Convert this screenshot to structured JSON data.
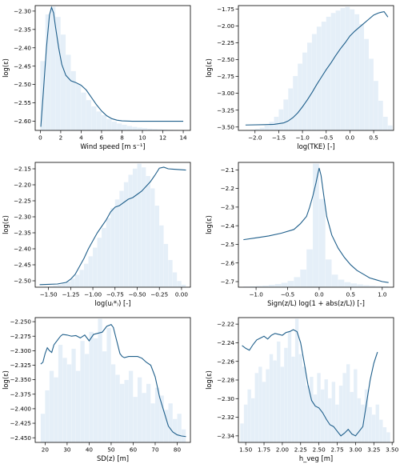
{
  "chart_data": [
    {
      "type": "line",
      "xlabel": "Wind speed [m s⁻¹]",
      "ylabel": "log(ε)",
      "xlim": [
        -0.5,
        14.7
      ],
      "ylim": [
        -2.625,
        -2.285
      ],
      "xticks": [
        0,
        2,
        4,
        6,
        8,
        10,
        12,
        14
      ],
      "yticks": [
        -2.6,
        -2.55,
        -2.5,
        -2.45,
        -2.4,
        -2.35,
        -2.3
      ],
      "xtick_labels": [
        "0",
        "2",
        "4",
        "6",
        "8",
        "10",
        "12",
        "14"
      ],
      "ytick_labels": [
        "−2.60",
        "−2.55",
        "−2.50",
        "−2.45",
        "−2.40",
        "−2.35",
        "−2.30"
      ],
      "hist_x": [
        0.25,
        0.75,
        1.25,
        1.75,
        2.25,
        2.75,
        3.25,
        3.75,
        4.25,
        4.75,
        5.25,
        5.75,
        6.25,
        6.75,
        7.25,
        7.75,
        8.25,
        8.75,
        9.25,
        9.75,
        10.25,
        10.75,
        11.25,
        11.75,
        12.25,
        12.75,
        13.25,
        13.75
      ],
      "hist_bin_width": 0.5,
      "hist_values": [
        0.55,
        0.92,
        0.98,
        0.9,
        0.76,
        0.6,
        0.47,
        0.37,
        0.3,
        0.24,
        0.19,
        0.15,
        0.12,
        0.09,
        0.07,
        0.055,
        0.045,
        0.035,
        0.028,
        0.022,
        0.018,
        0.014,
        0.011,
        0.009,
        0.007,
        0.005,
        0.004,
        0.003
      ],
      "line_x": [
        0.05,
        0.3,
        0.6,
        0.9,
        1.1,
        1.3,
        1.5,
        1.8,
        2.1,
        2.5,
        3.0,
        3.5,
        4.0,
        4.5,
        5.0,
        5.5,
        6.0,
        6.5,
        7.0,
        7.5,
        8.0,
        9.0,
        10.0,
        11.0,
        12.0,
        13.0,
        14.0
      ],
      "line_y": [
        -2.615,
        -2.52,
        -2.4,
        -2.31,
        -2.29,
        -2.305,
        -2.345,
        -2.4,
        -2.445,
        -2.475,
        -2.49,
        -2.495,
        -2.502,
        -2.515,
        -2.535,
        -2.555,
        -2.572,
        -2.585,
        -2.593,
        -2.597,
        -2.599,
        -2.6,
        -2.6,
        -2.6,
        -2.6,
        -2.6,
        -2.6
      ]
    },
    {
      "type": "line",
      "xlabel": "log(TKE) [-]",
      "ylabel": "log(ε)",
      "xlim": [
        -2.35,
        0.92
      ],
      "ylim": [
        -3.55,
        -1.7
      ],
      "xticks": [
        -2.0,
        -1.5,
        -1.0,
        -0.5,
        0.0,
        0.5
      ],
      "yticks": [
        -3.5,
        -3.25,
        -3.0,
        -2.75,
        -2.5,
        -2.25,
        -2.0,
        -1.75
      ],
      "xtick_labels": [
        "−2.0",
        "−1.5",
        "−1.0",
        "−0.5",
        "0.0",
        "0.5"
      ],
      "ytick_labels": [
        "−3.50",
        "−3.25",
        "−3.00",
        "−2.75",
        "−2.50",
        "−2.25",
        "−2.00",
        "−1.75"
      ],
      "hist_x": [
        -2.15,
        -2.05,
        -1.95,
        -1.85,
        -1.75,
        -1.65,
        -1.55,
        -1.45,
        -1.35,
        -1.25,
        -1.15,
        -1.05,
        -0.95,
        -0.85,
        -0.75,
        -0.65,
        -0.55,
        -0.45,
        -0.35,
        -0.25,
        -0.15,
        -0.05,
        0.05,
        0.15,
        0.25,
        0.35,
        0.45,
        0.55,
        0.65,
        0.75,
        0.85
      ],
      "hist_bin_width": 0.1,
      "hist_values": [
        0.003,
        0.006,
        0.012,
        0.022,
        0.04,
        0.07,
        0.11,
        0.17,
        0.25,
        0.34,
        0.44,
        0.54,
        0.63,
        0.71,
        0.78,
        0.84,
        0.88,
        0.92,
        0.95,
        0.97,
        0.99,
        1.0,
        0.98,
        0.94,
        0.86,
        0.74,
        0.58,
        0.4,
        0.24,
        0.11,
        0.04
      ],
      "line_x": [
        -2.2,
        -1.8,
        -1.6,
        -1.4,
        -1.3,
        -1.2,
        -1.1,
        -1.0,
        -0.9,
        -0.8,
        -0.7,
        -0.6,
        -0.5,
        -0.4,
        -0.3,
        -0.2,
        -0.1,
        0.0,
        0.1,
        0.2,
        0.3,
        0.4,
        0.5,
        0.6,
        0.65,
        0.72,
        0.8
      ],
      "line_y": [
        -3.47,
        -3.465,
        -3.46,
        -3.44,
        -3.41,
        -3.36,
        -3.29,
        -3.2,
        -3.1,
        -2.99,
        -2.87,
        -2.76,
        -2.65,
        -2.55,
        -2.44,
        -2.34,
        -2.25,
        -2.15,
        -2.08,
        -2.02,
        -1.96,
        -1.9,
        -1.84,
        -1.81,
        -1.8,
        -1.79,
        -1.87
      ]
    },
    {
      "type": "line",
      "xlabel": "log(u₍*₎) [-]",
      "ylabel": "log(ε)",
      "xlim": [
        -1.65,
        0.1
      ],
      "ylim": [
        -2.52,
        -2.13
      ],
      "xticks": [
        -1.5,
        -1.25,
        -1.0,
        -0.75,
        -0.5,
        -0.25,
        0.0
      ],
      "yticks": [
        -2.5,
        -2.45,
        -2.4,
        -2.35,
        -2.3,
        -2.25,
        -2.2,
        -2.15
      ],
      "xtick_labels": [
        "−1.50",
        "−1.25",
        "−1.00",
        "−0.75",
        "−0.50",
        "−0.25",
        "0.00"
      ],
      "ytick_labels": [
        "−2.50",
        "−2.45",
        "−2.40",
        "−2.35",
        "−2.30",
        "−2.25",
        "−2.20",
        "−2.15"
      ],
      "hist_x": [
        -1.575,
        -1.525,
        -1.475,
        -1.425,
        -1.375,
        -1.325,
        -1.275,
        -1.225,
        -1.175,
        -1.125,
        -1.075,
        -1.025,
        -0.975,
        -0.925,
        -0.875,
        -0.825,
        -0.775,
        -0.725,
        -0.675,
        -0.625,
        -0.575,
        -0.525,
        -0.475,
        -0.425,
        -0.375,
        -0.325,
        -0.275,
        -0.225,
        -0.175,
        -0.125,
        -0.075,
        -0.025,
        0.025
      ],
      "hist_bin_width": 0.05,
      "hist_values": [
        0.002,
        0.004,
        0.008,
        0.013,
        0.02,
        0.03,
        0.045,
        0.07,
        0.1,
        0.14,
        0.19,
        0.25,
        0.32,
        0.4,
        0.48,
        0.56,
        0.64,
        0.71,
        0.78,
        0.85,
        0.91,
        0.96,
        1.0,
        0.97,
        0.9,
        0.8,
        0.66,
        0.5,
        0.35,
        0.22,
        0.12,
        0.05,
        0.02
      ],
      "line_x": [
        -1.6,
        -1.5,
        -1.4,
        -1.3,
        -1.25,
        -1.2,
        -1.15,
        -1.1,
        -1.05,
        -1.0,
        -0.95,
        -0.9,
        -0.85,
        -0.8,
        -0.75,
        -0.7,
        -0.65,
        -0.6,
        -0.55,
        -0.5,
        -0.45,
        -0.4,
        -0.35,
        -0.3,
        -0.25,
        -0.2,
        -0.15,
        -0.1,
        -0.05,
        0.0,
        0.05
      ],
      "line_y": [
        -2.512,
        -2.511,
        -2.51,
        -2.505,
        -2.495,
        -2.48,
        -2.455,
        -2.43,
        -2.4,
        -2.375,
        -2.35,
        -2.33,
        -2.31,
        -2.285,
        -2.27,
        -2.265,
        -2.255,
        -2.245,
        -2.24,
        -2.23,
        -2.22,
        -2.205,
        -2.19,
        -2.17,
        -2.148,
        -2.145,
        -2.15,
        -2.151,
        -2.152,
        -2.153,
        -2.154
      ]
    },
    {
      "type": "line",
      "xlabel": "Sign(z/L) log(1 + abs(z/L)) [-]",
      "ylabel": "log(ε)",
      "xlim": [
        -1.28,
        1.18
      ],
      "ylim": [
        -2.73,
        -2.06
      ],
      "xticks": [
        -1.0,
        -0.5,
        0.0,
        0.5,
        1.0
      ],
      "yticks": [
        -2.7,
        -2.6,
        -2.5,
        -2.4,
        -2.3,
        -2.2,
        -2.1
      ],
      "xtick_labels": [
        "−1.0",
        "−0.5",
        "0.0",
        "0.5",
        "1.0"
      ],
      "ytick_labels": [
        "−2.7",
        "−2.6",
        "−2.5",
        "−2.4",
        "−2.3",
        "−2.2",
        "−2.1"
      ],
      "hist_x": [
        -1.15,
        -1.05,
        -0.95,
        -0.85,
        -0.75,
        -0.65,
        -0.55,
        -0.45,
        -0.35,
        -0.25,
        -0.15,
        -0.05,
        0.05,
        0.15,
        0.25,
        0.35,
        0.45,
        0.55,
        0.65,
        0.75,
        0.85,
        0.95,
        1.05
      ],
      "hist_bin_width": 0.1,
      "hist_values": [
        0.005,
        0.007,
        0.01,
        0.013,
        0.018,
        0.025,
        0.035,
        0.05,
        0.08,
        0.14,
        0.3,
        0.98,
        0.7,
        0.22,
        0.1,
        0.06,
        0.04,
        0.03,
        0.022,
        0.016,
        0.012,
        0.009,
        0.007
      ],
      "line_x": [
        -1.2,
        -1.0,
        -0.8,
        -0.6,
        -0.4,
        -0.3,
        -0.2,
        -0.15,
        -0.1,
        -0.05,
        -0.02,
        0.0,
        0.03,
        0.07,
        0.12,
        0.2,
        0.3,
        0.4,
        0.5,
        0.6,
        0.7,
        0.8,
        0.9,
        1.0,
        1.1
      ],
      "line_y": [
        -2.475,
        -2.465,
        -2.455,
        -2.44,
        -2.42,
        -2.39,
        -2.35,
        -2.3,
        -2.24,
        -2.17,
        -2.12,
        -2.09,
        -2.13,
        -2.23,
        -2.35,
        -2.45,
        -2.52,
        -2.57,
        -2.61,
        -2.64,
        -2.66,
        -2.68,
        -2.69,
        -2.7,
        -2.705
      ]
    },
    {
      "type": "line",
      "xlabel": "SD(z) [m]",
      "ylabel": "log(ε)",
      "xlim": [
        15.5,
        86
      ],
      "ylim": [
        -2.458,
        -2.243
      ],
      "xticks": [
        20,
        30,
        40,
        50,
        60,
        70,
        80
      ],
      "yticks": [
        -2.45,
        -2.425,
        -2.4,
        -2.375,
        -2.35,
        -2.325,
        -2.3,
        -2.275,
        -2.25
      ],
      "xtick_labels": [
        "20",
        "30",
        "40",
        "50",
        "60",
        "70",
        "80"
      ],
      "ytick_labels": [
        "−2.450",
        "−2.425",
        "−2.400",
        "−2.375",
        "−2.350",
        "−2.325",
        "−2.300",
        "−2.275",
        "−2.250"
      ],
      "hist_x": [
        19,
        21,
        23,
        25,
        27,
        29,
        31,
        33,
        35,
        37,
        39,
        41,
        43,
        45,
        47,
        49,
        51,
        53,
        55,
        57,
        59,
        61,
        63,
        65,
        67,
        69,
        71,
        73,
        75,
        77,
        79,
        81,
        83
      ],
      "hist_bin_width": 2,
      "hist_values": [
        0.22,
        0.4,
        0.55,
        0.5,
        0.75,
        0.65,
        0.6,
        0.72,
        0.55,
        0.78,
        0.68,
        0.85,
        0.8,
        0.95,
        0.7,
        0.88,
        0.6,
        0.52,
        0.45,
        0.48,
        0.55,
        0.35,
        0.5,
        0.38,
        0.45,
        0.3,
        0.42,
        0.36,
        0.25,
        0.3,
        0.18,
        0.22,
        0.1
      ],
      "line_x": [
        18,
        19,
        20,
        21,
        22,
        23,
        24,
        25,
        26,
        27,
        28,
        30,
        32,
        34,
        36,
        38,
        40,
        42,
        44,
        46,
        48,
        50,
        51,
        52,
        53,
        54,
        55,
        56,
        58,
        60,
        62,
        64,
        66,
        68,
        70,
        72,
        74,
        76,
        78,
        80,
        82,
        84
      ],
      "line_y": [
        -2.323,
        -2.32,
        -2.305,
        -2.295,
        -2.3,
        -2.303,
        -2.29,
        -2.285,
        -2.28,
        -2.275,
        -2.272,
        -2.273,
        -2.275,
        -2.274,
        -2.278,
        -2.273,
        -2.283,
        -2.272,
        -2.27,
        -2.268,
        -2.258,
        -2.255,
        -2.26,
        -2.275,
        -2.29,
        -2.305,
        -2.31,
        -2.312,
        -2.31,
        -2.31,
        -2.31,
        -2.313,
        -2.32,
        -2.325,
        -2.345,
        -2.38,
        -2.405,
        -2.43,
        -2.44,
        -2.445,
        -2.447,
        -2.448
      ]
    },
    {
      "type": "line",
      "xlabel": "h_veg [m]",
      "ylabel": "log(ε)",
      "xlim": [
        1.4,
        3.52
      ],
      "ylim": [
        -2.347,
        -2.213
      ],
      "xticks": [
        1.5,
        1.75,
        2.0,
        2.25,
        2.5,
        2.75,
        3.0,
        3.25,
        3.5
      ],
      "yticks": [
        -2.34,
        -2.32,
        -2.3,
        -2.28,
        -2.26,
        -2.24,
        -2.22
      ],
      "xtick_labels": [
        "1.50",
        "1.75",
        "2.00",
        "2.25",
        "2.50",
        "2.75",
        "3.00",
        "3.25",
        "3.50"
      ],
      "ytick_labels": [
        "−2.34",
        "−2.32",
        "−2.30",
        "−2.28",
        "−2.26",
        "−2.24",
        "−2.22"
      ],
      "hist_x": [
        1.45,
        1.5,
        1.55,
        1.6,
        1.65,
        1.7,
        1.75,
        1.8,
        1.85,
        1.9,
        1.95,
        2.0,
        2.05,
        2.1,
        2.15,
        2.2,
        2.25,
        2.3,
        2.35,
        2.4,
        2.45,
        2.5,
        2.55,
        2.6,
        2.65,
        2.7,
        2.75,
        2.8,
        2.85,
        2.9,
        2.95,
        3.0,
        3.05,
        3.1,
        3.15,
        3.2,
        3.25,
        3.3,
        3.35,
        3.4,
        3.45
      ],
      "hist_bin_width": 0.05,
      "hist_values": [
        0.15,
        0.3,
        0.42,
        0.35,
        0.55,
        0.6,
        0.48,
        0.58,
        0.7,
        0.65,
        0.8,
        0.6,
        0.75,
        0.88,
        0.68,
        0.98,
        0.7,
        0.6,
        0.45,
        0.52,
        0.38,
        0.55,
        0.42,
        0.5,
        0.35,
        0.48,
        0.3,
        0.45,
        0.55,
        0.62,
        0.4,
        0.58,
        0.35,
        0.3,
        0.42,
        0.28,
        0.22,
        0.3,
        0.18,
        0.12,
        0.08
      ],
      "line_x": [
        1.45,
        1.5,
        1.55,
        1.6,
        1.65,
        1.7,
        1.75,
        1.8,
        1.85,
        1.9,
        1.95,
        2.0,
        2.05,
        2.1,
        2.15,
        2.2,
        2.25,
        2.3,
        2.35,
        2.4,
        2.45,
        2.5,
        2.55,
        2.6,
        2.65,
        2.7,
        2.75,
        2.8,
        2.85,
        2.9,
        2.95,
        3.0,
        3.05,
        3.1,
        3.15,
        3.2,
        3.25,
        3.3
      ],
      "line_y": [
        -2.243,
        -2.246,
        -2.248,
        -2.242,
        -2.237,
        -2.235,
        -2.233,
        -2.236,
        -2.232,
        -2.23,
        -2.231,
        -2.232,
        -2.229,
        -2.228,
        -2.226,
        -2.228,
        -2.24,
        -2.262,
        -2.285,
        -2.302,
        -2.308,
        -2.31,
        -2.315,
        -2.322,
        -2.328,
        -2.33,
        -2.335,
        -2.34,
        -2.337,
        -2.333,
        -2.338,
        -2.34,
        -2.335,
        -2.33,
        -2.305,
        -2.28,
        -2.262,
        -2.25
      ]
    }
  ]
}
